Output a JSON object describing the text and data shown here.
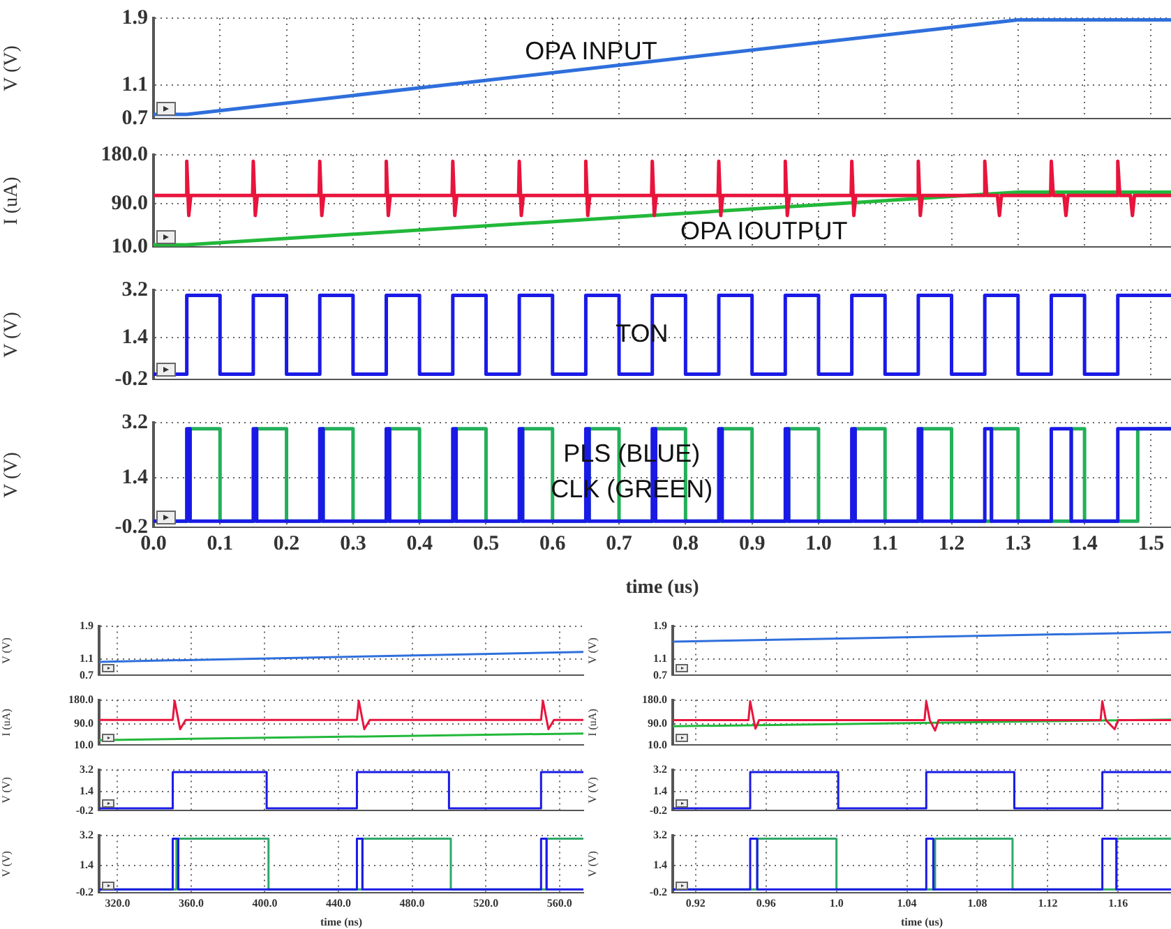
{
  "chart_data": [
    {
      "type": "line",
      "ylabel": "V (V)",
      "xlim": [
        0,
        1.53
      ],
      "xticks": [
        0,
        0.1,
        0.2,
        0.3,
        0.4,
        0.5,
        0.6,
        0.7,
        0.8,
        0.9,
        1,
        1.1,
        1.2,
        1.3,
        1.4,
        1.5
      ],
      "ylim": [
        0.7,
        1.9
      ],
      "yticks": [
        0.7,
        1.1,
        1.9
      ],
      "tick_labels": "y",
      "grid": true,
      "annotations": [
        "OPA INPUT"
      ],
      "series": [
        {
          "color": "#2f6fdc",
          "x": [
            0,
            0.05,
            1.3,
            1.53
          ],
          "values": [
            0.75,
            0.75,
            1.88,
            1.88
          ]
        }
      ]
    },
    {
      "type": "line",
      "ylabel": "I (uA)",
      "xlim": [
        0,
        1.53
      ],
      "xticks": [
        0,
        0.1,
        0.2,
        0.3,
        0.4,
        0.5,
        0.6,
        0.7,
        0.8,
        0.9,
        1,
        1.1,
        1.2,
        1.3,
        1.4,
        1.5
      ],
      "ylim": [
        10,
        180
      ],
      "yticks": [
        {
          "value": 10,
          "label": "10.0"
        },
        {
          "value": 90,
          "label": "90.0"
        },
        {
          "value": 180,
          "label": "180.0"
        }
      ],
      "tick_labels": "y",
      "grid": true,
      "annotations": [
        "OPA IOUTPUT"
      ],
      "series": [
        {
          "color": "#e8143c",
          "x": [
            0,
            0.049,
            0.05,
            0.053,
            0.056,
            0.149,
            0.15,
            0.153,
            0.156,
            0.249,
            0.25,
            0.253,
            0.256,
            0.349,
            0.35,
            0.353,
            0.356,
            0.449,
            0.45,
            0.453,
            0.456,
            0.549,
            0.55,
            0.553,
            0.556,
            0.649,
            0.65,
            0.653,
            0.656,
            0.749,
            0.75,
            0.753,
            0.756,
            0.849,
            0.85,
            0.853,
            0.856,
            0.949,
            0.95,
            0.953,
            0.956,
            1.049,
            1.05,
            1.053,
            1.056,
            1.149,
            1.15,
            1.153,
            1.156,
            1.249,
            1.25,
            1.253,
            1.269,
            1.272,
            1.275,
            1.349,
            1.35,
            1.353,
            1.369,
            1.372,
            1.375,
            1.449,
            1.45,
            1.453,
            1.469,
            1.472,
            1.475,
            1.53
          ],
          "values": [
            105,
            105,
            168,
            68,
            105,
            105,
            168,
            68,
            105,
            105,
            168,
            68,
            105,
            105,
            168,
            68,
            105,
            105,
            168,
            68,
            105,
            105,
            168,
            68,
            105,
            105,
            168,
            68,
            105,
            105,
            168,
            68,
            105,
            105,
            168,
            68,
            105,
            105,
            168,
            68,
            105,
            105,
            168,
            68,
            105,
            105,
            168,
            68,
            105,
            105,
            168,
            105,
            105,
            68,
            105,
            105,
            168,
            105,
            105,
            68,
            105,
            105,
            168,
            105,
            105,
            68,
            105,
            105
          ]
        },
        {
          "color": "#22b83a",
          "x": [
            0,
            0.05,
            1.3,
            1.53
          ],
          "values": [
            14,
            14,
            111,
            111
          ]
        }
      ]
    },
    {
      "type": "step",
      "ylabel": "V (V)",
      "xlim": [
        0,
        1.53
      ],
      "xticks": [
        0,
        0.1,
        0.2,
        0.3,
        0.4,
        0.5,
        0.6,
        0.7,
        0.8,
        0.9,
        1,
        1.1,
        1.2,
        1.3,
        1.4,
        1.5
      ],
      "ylim": [
        -0.2,
        3.2
      ],
      "yticks": [
        -0.2,
        1.4,
        3.2
      ],
      "tick_labels": "y",
      "grid": true,
      "annotations": [
        "TON"
      ],
      "series": [
        {
          "color": "#1a1ae6",
          "x": [
            0,
            0.05,
            0.1,
            0.15,
            0.2,
            0.25,
            0.3,
            0.35,
            0.4,
            0.45,
            0.5,
            0.55,
            0.6,
            0.65,
            0.7,
            0.75,
            0.8,
            0.85,
            0.9,
            0.95,
            1,
            1.05,
            1.1,
            1.15,
            1.2,
            1.25,
            1.3,
            1.35,
            1.4,
            1.45,
            1.53
          ],
          "values": [
            0,
            3,
            0,
            3,
            0,
            3,
            0,
            3,
            0,
            3,
            0,
            3,
            0,
            3,
            0,
            3,
            0,
            3,
            0,
            3,
            0,
            3,
            0,
            3,
            0,
            3,
            0,
            3,
            0,
            3,
            3
          ]
        }
      ]
    },
    {
      "type": "step",
      "ylabel": "V (V)",
      "xlabel": "time (us)",
      "xlim": [
        0,
        1.53
      ],
      "xticks": [
        {
          "value": 0,
          "label": "0.0"
        },
        0.1,
        0.2,
        0.3,
        0.4,
        0.5,
        0.6,
        0.7,
        0.8,
        0.9,
        {
          "value": 1,
          "label": "1.0"
        },
        1.1,
        1.2,
        1.3,
        1.4,
        1.5
      ],
      "ylim": [
        -0.2,
        3.2
      ],
      "yticks": [
        -0.2,
        1.4,
        3.2
      ],
      "grid": true,
      "annotations": [
        "PLS (BLUE)",
        "CLK (GREEN)"
      ],
      "series": [
        {
          "color": "#1a1ae6",
          "x": [
            0,
            0.05,
            0.055,
            0.15,
            0.155,
            0.25,
            0.255,
            0.35,
            0.355,
            0.45,
            0.455,
            0.55,
            0.555,
            0.65,
            0.655,
            0.75,
            0.755,
            0.85,
            0.855,
            0.95,
            0.955,
            1.05,
            1.055,
            1.15,
            1.155,
            1.25,
            1.26,
            1.35,
            1.38,
            1.45,
            1.53
          ],
          "values": [
            0,
            3,
            0,
            3,
            0,
            3,
            0,
            3,
            0,
            3,
            0,
            3,
            0,
            3,
            0,
            3,
            0,
            3,
            0,
            3,
            0,
            3,
            0,
            3,
            0,
            3,
            0,
            3,
            0,
            3,
            3
          ]
        },
        {
          "color": "#22b05a",
          "x": [
            0,
            0.055,
            0.1,
            0.155,
            0.2,
            0.255,
            0.3,
            0.355,
            0.4,
            0.455,
            0.5,
            0.555,
            0.6,
            0.655,
            0.7,
            0.755,
            0.8,
            0.855,
            0.9,
            0.955,
            1,
            1.055,
            1.1,
            1.155,
            1.2,
            1.26,
            1.3,
            1.38,
            1.4,
            1.48,
            1.53
          ],
          "values": [
            0,
            3,
            0,
            3,
            0,
            3,
            0,
            3,
            0,
            3,
            0,
            3,
            0,
            3,
            0,
            3,
            0,
            3,
            0,
            3,
            0,
            3,
            0,
            3,
            0,
            3,
            0,
            3,
            0,
            3,
            3
          ]
        }
      ]
    },
    {
      "type": "line",
      "ylabel": "V (V)",
      "xlim": [
        310,
        573
      ],
      "xticks": [
        320,
        360,
        400,
        440,
        480,
        520,
        560
      ],
      "ylim": [
        0.7,
        1.9
      ],
      "yticks": [
        0.7,
        1.1,
        1.9
      ],
      "tick_labels": "y",
      "grid": true,
      "series": [
        {
          "color": "#2f6fdc",
          "x": [
            310,
            573
          ],
          "values": [
            1.03,
            1.27
          ]
        }
      ]
    },
    {
      "type": "line",
      "ylabel": "I (uA)",
      "xlim": [
        310,
        573
      ],
      "xticks": [
        320,
        360,
        400,
        440,
        480,
        520,
        560
      ],
      "ylim": [
        10,
        180
      ],
      "yticks": [
        {
          "value": 10,
          "label": "10.0"
        },
        {
          "value": 90,
          "label": "90.0"
        },
        {
          "value": 180,
          "label": "180.0"
        }
      ],
      "tick_labels": "y",
      "grid": true,
      "series": [
        {
          "color": "#e8143c",
          "x": [
            310,
            350,
            351,
            354,
            357,
            450,
            451,
            454,
            457,
            550,
            551,
            554,
            557,
            573
          ],
          "values": [
            105,
            105,
            178,
            70,
            105,
            105,
            178,
            70,
            105,
            105,
            178,
            70,
            105,
            105
          ]
        },
        {
          "color": "#22b83a",
          "x": [
            310,
            573
          ],
          "values": [
            29,
            54
          ]
        }
      ]
    },
    {
      "type": "step",
      "ylabel": "V (V)",
      "xlim": [
        310,
        573
      ],
      "xticks": [
        320,
        360,
        400,
        440,
        480,
        520,
        560
      ],
      "ylim": [
        -0.2,
        3.2
      ],
      "yticks": [
        -0.2,
        1.4,
        3.2
      ],
      "tick_labels": "y",
      "grid": true,
      "series": [
        {
          "color": "#1a1ae6",
          "x": [
            310,
            350,
            401,
            450,
            500,
            550,
            573
          ],
          "values": [
            0,
            3,
            0,
            3,
            0,
            3,
            3
          ]
        }
      ]
    },
    {
      "type": "step",
      "ylabel": "V (V)",
      "xlabel": "time (ns)",
      "xlim": [
        310,
        573
      ],
      "xticks": [
        {
          "value": 320,
          "label": "320.0"
        },
        {
          "value": 360,
          "label": "360.0"
        },
        {
          "value": 400,
          "label": "400.0"
        },
        {
          "value": 440,
          "label": "440.0"
        },
        {
          "value": 480,
          "label": "480.0"
        },
        {
          "value": 520,
          "label": "520.0"
        },
        {
          "value": 560,
          "label": "560.0"
        }
      ],
      "ylim": [
        -0.2,
        3.2
      ],
      "yticks": [
        -0.2,
        1.4,
        3.2
      ],
      "grid": true,
      "series": [
        {
          "color": "#1a1ae6",
          "x": [
            310,
            350,
            353,
            450,
            453,
            550,
            553,
            573
          ],
          "values": [
            0,
            3,
            0,
            3,
            0,
            3,
            0,
            0
          ]
        },
        {
          "color": "#2ea86a",
          "x": [
            310,
            352,
            402,
            453,
            501,
            553,
            573
          ],
          "values": [
            0,
            3,
            0,
            3,
            0,
            3,
            3
          ]
        }
      ]
    },
    {
      "type": "line",
      "ylabel": "V (V)",
      "xlim": [
        0.907,
        1.19
      ],
      "xticks": [
        0.92,
        0.96,
        1,
        1.04,
        1.08,
        1.12,
        1.16
      ],
      "ylim": [
        0.7,
        1.9
      ],
      "yticks": [
        0.7,
        1.1,
        1.9
      ],
      "tick_labels": "y",
      "grid": true,
      "series": [
        {
          "color": "#2f6fdc",
          "x": [
            0.907,
            1.19
          ],
          "values": [
            1.52,
            1.75
          ]
        }
      ]
    },
    {
      "type": "line",
      "ylabel": "I (uA)",
      "xlim": [
        0.907,
        1.19
      ],
      "xticks": [
        0.92,
        0.96,
        1,
        1.04,
        1.08,
        1.12,
        1.16
      ],
      "ylim": [
        10,
        180
      ],
      "yticks": [
        {
          "value": 10,
          "label": "10.0"
        },
        {
          "value": 90,
          "label": "90.0"
        },
        {
          "value": 180,
          "label": "180.0"
        }
      ],
      "tick_labels": "y",
      "grid": true,
      "series": [
        {
          "color": "#e8143c",
          "x": [
            0.907,
            0.95,
            0.951,
            0.953,
            0.954,
            0.956,
            1.05,
            1.051,
            1.053,
            1.056,
            1.058,
            1.15,
            1.151,
            1.153,
            1.158,
            1.16,
            1.19
          ],
          "values": [
            104,
            104,
            175,
            104,
            72,
            104,
            104,
            175,
            104,
            65,
            104,
            104,
            175,
            104,
            70,
            104,
            104
          ]
        },
        {
          "color": "#22b83a",
          "x": [
            0.907,
            1.19
          ],
          "values": [
            81,
            106
          ]
        }
      ]
    },
    {
      "type": "step",
      "ylabel": "V (V)",
      "xlim": [
        0.907,
        1.19
      ],
      "xticks": [
        0.92,
        0.96,
        1,
        1.04,
        1.08,
        1.12,
        1.16
      ],
      "ylim": [
        -0.2,
        3.2
      ],
      "yticks": [
        -0.2,
        1.4,
        3.2
      ],
      "tick_labels": "y",
      "grid": true,
      "series": [
        {
          "color": "#1a1ae6",
          "x": [
            0.907,
            0.951,
            1.001,
            1.051,
            1.101,
            1.151,
            1.19
          ],
          "values": [
            0,
            3,
            0,
            3,
            0,
            3,
            3
          ]
        }
      ]
    },
    {
      "type": "step",
      "ylabel": "V (V)",
      "xlabel": "time (us)",
      "xlim": [
        0.907,
        1.19
      ],
      "xticks": [
        0.92,
        0.96,
        {
          "value": 1,
          "label": "1.0"
        },
        1.04,
        1.08,
        1.12,
        1.16
      ],
      "ylim": [
        -0.2,
        3.2
      ],
      "yticks": [
        -0.2,
        1.4,
        3.2
      ],
      "grid": true,
      "series": [
        {
          "color": "#1a1ae6",
          "x": [
            0.907,
            0.951,
            0.955,
            1.051,
            1.055,
            1.151,
            1.159,
            1.19
          ],
          "values": [
            0,
            3,
            0,
            3,
            0,
            3,
            0,
            0
          ]
        },
        {
          "color": "#2ea86a",
          "x": [
            0.907,
            0.955,
            1,
            1.056,
            1.1,
            1.159,
            1.19
          ],
          "values": [
            0,
            3,
            0,
            3,
            0,
            3,
            3
          ]
        }
      ]
    }
  ]
}
